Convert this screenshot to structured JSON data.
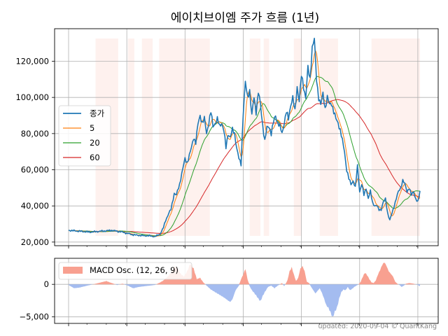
{
  "chart_data": [
    {
      "type": "line",
      "title": "에이치브이엠 주가 흐름 (1년)",
      "ylim": [
        18000,
        138000
      ],
      "yticks": [
        20000,
        40000,
        60000,
        80000,
        100000,
        120000
      ],
      "ytick_labels": [
        "20,000",
        "40,000",
        "60,000",
        "80,000",
        "100,000",
        "120,000"
      ],
      "grid": true,
      "legend_position": "center-left",
      "x_count": 250,
      "series": [
        {
          "name": "종가",
          "color": "#1f77b4",
          "anchors": [
            [
              0,
              26500
            ],
            [
              10,
              26000
            ],
            [
              20,
              25500
            ],
            [
              30,
              26000
            ],
            [
              40,
              26500
            ],
            [
              50,
              25500
            ],
            [
              60,
              24000
            ],
            [
              70,
              23500
            ],
            [
              75,
              23500
            ],
            [
              80,
              23000
            ],
            [
              85,
              24500
            ],
            [
              88,
              28000
            ],
            [
              90,
              32000
            ],
            [
              93,
              36000
            ],
            [
              95,
              38000
            ],
            [
              98,
              47000
            ],
            [
              100,
              46000
            ],
            [
              103,
              52000
            ],
            [
              105,
              58000
            ],
            [
              108,
              66000
            ],
            [
              110,
              64000
            ],
            [
              112,
              68000
            ],
            [
              114,
              72000
            ],
            [
              116,
              78000
            ],
            [
              118,
              75000
            ],
            [
              120,
              85000
            ],
            [
              122,
              90000
            ],
            [
              124,
              86000
            ],
            [
              126,
              88000
            ],
            [
              128,
              80000
            ],
            [
              130,
              86000
            ],
            [
              132,
              92000
            ],
            [
              134,
              84000
            ],
            [
              136,
              86000
            ],
            [
              138,
              88000
            ],
            [
              140,
              84000
            ],
            [
              142,
              86000
            ],
            [
              144,
              82000
            ],
            [
              146,
              72000
            ],
            [
              148,
              80000
            ],
            [
              150,
              78000
            ],
            [
              152,
              82000
            ],
            [
              154,
              80000
            ],
            [
              156,
              72000
            ],
            [
              158,
              66000
            ],
            [
              160,
              63000
            ],
            [
              162,
              92000
            ],
            [
              164,
              108000
            ],
            [
              166,
              100000
            ],
            [
              168,
              104000
            ],
            [
              170,
              90000
            ],
            [
              172,
              100000
            ],
            [
              174,
              92000
            ],
            [
              176,
              103000
            ],
            [
              178,
              96000
            ],
            [
              180,
              85000
            ],
            [
              182,
              76000
            ],
            [
              184,
              83000
            ],
            [
              186,
              84000
            ],
            [
              188,
              80000
            ],
            [
              190,
              86000
            ],
            [
              192,
              90000
            ],
            [
              194,
              86000
            ],
            [
              196,
              84000
            ],
            [
              198,
              80000
            ],
            [
              200,
              86000
            ],
            [
              202,
              92000
            ],
            [
              204,
              88000
            ],
            [
              206,
              96000
            ],
            [
              208,
              100000
            ],
            [
              210,
              92000
            ],
            [
              212,
              106000
            ],
            [
              214,
              98000
            ],
            [
              216,
              112000
            ],
            [
              218,
              106000
            ],
            [
              220,
              100000
            ],
            [
              222,
              116000
            ],
            [
              224,
              110000
            ],
            [
              226,
              128000
            ],
            [
              228,
              132000
            ],
            [
              230,
              110000
            ],
            [
              232,
              100000
            ],
            [
              234,
              96000
            ],
            [
              236,
              102000
            ],
            [
              238,
              94000
            ],
            [
              240,
              100000
            ],
            [
              242,
              96000
            ],
            [
              244,
              97000
            ],
            [
              246,
              92000
            ],
            [
              248,
              88000
            ],
            [
              250,
              86000
            ],
            [
              252,
              82000
            ],
            [
              254,
              76000
            ],
            [
              256,
              70000
            ],
            [
              258,
              60000
            ],
            [
              260,
              55000
            ],
            [
              262,
              52000
            ],
            [
              264,
              54000
            ],
            [
              266,
              50000
            ],
            [
              268,
              62000
            ],
            [
              270,
              48000
            ],
            [
              272,
              52000
            ],
            [
              274,
              46000
            ],
            [
              276,
              50000
            ],
            [
              278,
              44000
            ],
            [
              280,
              48000
            ],
            [
              282,
              42000
            ],
            [
              284,
              40000
            ],
            [
              286,
              40000
            ],
            [
              288,
              38000
            ],
            [
              290,
              38000
            ],
            [
              292,
              42000
            ],
            [
              294,
              44000
            ],
            [
              296,
              36000
            ],
            [
              298,
              32000
            ],
            [
              300,
              36000
            ],
            [
              302,
              40000
            ],
            [
              304,
              44000
            ],
            [
              306,
              48000
            ],
            [
              308,
              50000
            ],
            [
              310,
              54000
            ],
            [
              312,
              52000
            ],
            [
              314,
              48000
            ],
            [
              316,
              50000
            ],
            [
              318,
              46000
            ],
            [
              320,
              48000
            ],
            [
              322,
              44000
            ],
            [
              324,
              42000
            ],
            [
              326,
              48000
            ]
          ]
        },
        {
          "name": "5",
          "color": "#ff7f0e",
          "smoothing": 5
        },
        {
          "name": "20",
          "color": "#2ca02c",
          "smoothing": 20
        },
        {
          "name": "60",
          "color": "#d62728",
          "smoothing": 60
        }
      ],
      "shaded_periods": [
        [
          25,
          46
        ],
        [
          55,
          61
        ],
        [
          68,
          78
        ],
        [
          84,
          131
        ],
        [
          168,
          178
        ],
        [
          181,
          186
        ],
        [
          209,
          216
        ],
        [
          233,
          250
        ],
        [
          281,
          326
        ]
      ]
    },
    {
      "type": "area",
      "ylim": [
        -6000,
        4000
      ],
      "yticks": [
        -5000,
        0
      ],
      "ytick_labels": [
        "−5,000",
        "0"
      ],
      "grid": true,
      "legend_position": "top-left",
      "series": [
        {
          "name": "MACD Osc. (12, 26, 9)",
          "positive_color": "#f8a090",
          "negative_color": "#a4bcf0",
          "anchors": [
            [
              0,
              -100
            ],
            [
              5,
              -600
            ],
            [
              10,
              -500
            ],
            [
              15,
              -300
            ],
            [
              20,
              -100
            ],
            [
              25,
              100
            ],
            [
              30,
              300
            ],
            [
              35,
              500
            ],
            [
              40,
              200
            ],
            [
              45,
              -100
            ],
            [
              50,
              100
            ],
            [
              55,
              -200
            ],
            [
              60,
              -600
            ],
            [
              65,
              -400
            ],
            [
              70,
              -300
            ],
            [
              75,
              -200
            ],
            [
              80,
              -100
            ],
            [
              85,
              300
            ],
            [
              88,
              600
            ],
            [
              92,
              1200
            ],
            [
              95,
              1800
            ],
            [
              98,
              2800
            ],
            [
              101,
              2500
            ],
            [
              104,
              1600
            ],
            [
              107,
              1200
            ],
            [
              110,
              2000
            ],
            [
              113,
              3200
            ],
            [
              116,
              2400
            ],
            [
              119,
              800
            ],
            [
              122,
              1000
            ],
            [
              125,
              300
            ],
            [
              128,
              -200
            ],
            [
              132,
              -800
            ],
            [
              136,
              -1200
            ],
            [
              140,
              -1600
            ],
            [
              144,
              -2000
            ],
            [
              148,
              -2500
            ],
            [
              150,
              -2700
            ],
            [
              152,
              -2300
            ],
            [
              155,
              -900
            ],
            [
              158,
              -200
            ],
            [
              160,
              800
            ],
            [
              162,
              1500
            ],
            [
              164,
              2400
            ],
            [
              166,
              800
            ],
            [
              168,
              -300
            ],
            [
              170,
              -900
            ],
            [
              172,
              -1300
            ],
            [
              174,
              -1700
            ],
            [
              176,
              -2200
            ],
            [
              178,
              -2600
            ],
            [
              180,
              -1800
            ],
            [
              182,
              -1200
            ],
            [
              185,
              -400
            ],
            [
              188,
              -200
            ],
            [
              191,
              -600
            ],
            [
              194,
              -200
            ],
            [
              198,
              200
            ],
            [
              200,
              -300
            ],
            [
              203,
              600
            ],
            [
              205,
              2000
            ],
            [
              207,
              2600
            ],
            [
              209,
              1500
            ],
            [
              211,
              500
            ],
            [
              213,
              1000
            ],
            [
              215,
              2400
            ],
            [
              217,
              2800
            ],
            [
              219,
              2000
            ],
            [
              221,
              400
            ],
            [
              223,
              200
            ],
            [
              225,
              -400
            ],
            [
              227,
              -900
            ],
            [
              229,
              -1400
            ],
            [
              231,
              -1000
            ],
            [
              233,
              -600
            ],
            [
              235,
              -1300
            ],
            [
              237,
              -2200
            ],
            [
              239,
              -3200
            ],
            [
              241,
              -3600
            ],
            [
              243,
              -4300
            ],
            [
              245,
              -5100
            ],
            [
              247,
              -4200
            ],
            [
              249,
              -3600
            ],
            [
              251,
              -2200
            ],
            [
              253,
              -1200
            ],
            [
              255,
              -800
            ],
            [
              257,
              -900
            ],
            [
              259,
              -400
            ],
            [
              261,
              -900
            ],
            [
              263,
              -700
            ],
            [
              265,
              -400
            ],
            [
              267,
              -200
            ],
            [
              269,
              0
            ],
            [
              271,
              400
            ],
            [
              273,
              1200
            ],
            [
              275,
              1800
            ],
            [
              277,
              1400
            ],
            [
              279,
              800
            ],
            [
              281,
              300
            ],
            [
              283,
              200
            ],
            [
              285,
              600
            ],
            [
              287,
              1500
            ],
            [
              289,
              2200
            ],
            [
              291,
              3000
            ],
            [
              293,
              3400
            ],
            [
              295,
              2800
            ],
            [
              297,
              2000
            ],
            [
              299,
              1600
            ],
            [
              301,
              1200
            ],
            [
              303,
              400
            ],
            [
              305,
              100
            ],
            [
              307,
              -100
            ],
            [
              309,
              -400
            ],
            [
              311,
              -200
            ],
            [
              313,
              100
            ],
            [
              316,
              200
            ],
            [
              320,
              100
            ],
            [
              324,
              -100
            ],
            [
              326,
              -300
            ]
          ]
        }
      ]
    }
  ],
  "footer": "updated: 2020-09-04 © QuantKang"
}
